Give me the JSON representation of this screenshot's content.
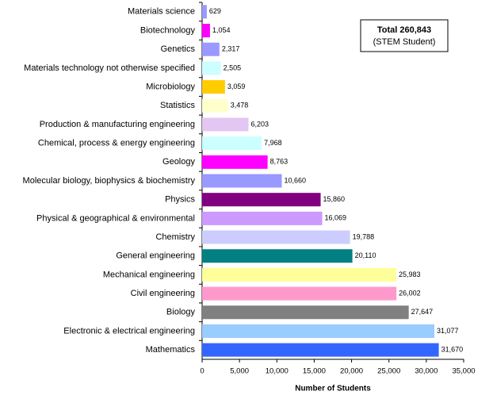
{
  "chart_data": {
    "type": "barh",
    "categories": [
      "Materials science",
      "Biotechnology",
      "Genetics",
      "Materials technology not otherwise specified",
      "Microbiology",
      "Statistics",
      "Production & manufacturing engineering",
      "Chemical, process & energy engineering",
      "Geology",
      "Molecular biology, biophysics & biochemistry",
      "Physics",
      "Physical & geographical & environmental",
      "Chemistry",
      "General engineering",
      "Mechanical engineering",
      "Civil engineering",
      "Biology",
      "Electronic & electrical engineering",
      "Mathematics"
    ],
    "values": [
      629,
      1054,
      2317,
      2505,
      3059,
      3478,
      6203,
      7968,
      8763,
      10660,
      15860,
      16069,
      19788,
      20110,
      25983,
      26002,
      27647,
      31077,
      31670
    ],
    "value_labels": [
      "629",
      "1,054",
      "2,317",
      "2,505",
      "3,059",
      "3,478",
      "6,203",
      "7,968",
      "8,763",
      "10,660",
      "15,860",
      "16,069",
      "19,788",
      "20,110",
      "25,983",
      "26,002",
      "27,647",
      "31,077",
      "31,670"
    ],
    "colors": [
      "#9999ff",
      "#ff00ff",
      "#9999ff",
      "#ccffff",
      "#ffcc00",
      "#ffffcc",
      "#e3c6f2",
      "#ccffff",
      "#ff00ff",
      "#9999ff",
      "#800080",
      "#cc99ff",
      "#ccccff",
      "#008080",
      "#ffff99",
      "#ff99cc",
      "#808080",
      "#99ccff",
      "#3366ff"
    ],
    "xlim": [
      0,
      35000
    ],
    "xticks": [
      0,
      {
        "value": 5000,
        "label": "5,000"
      },
      {
        "value": 10000,
        "label": "10,000"
      },
      {
        "value": 15000,
        "label": "15,000"
      },
      {
        "value": 20000,
        "label": "20,000"
      },
      {
        "value": 25000,
        "label": "25,000"
      },
      {
        "value": 30000,
        "label": "30,000"
      },
      {
        "value": 35000,
        "label": "35,000"
      }
    ],
    "xlabel": "Number of Students",
    "annotation": {
      "title": "Total 260,843",
      "subtitle": "(STEM Student)"
    }
  }
}
